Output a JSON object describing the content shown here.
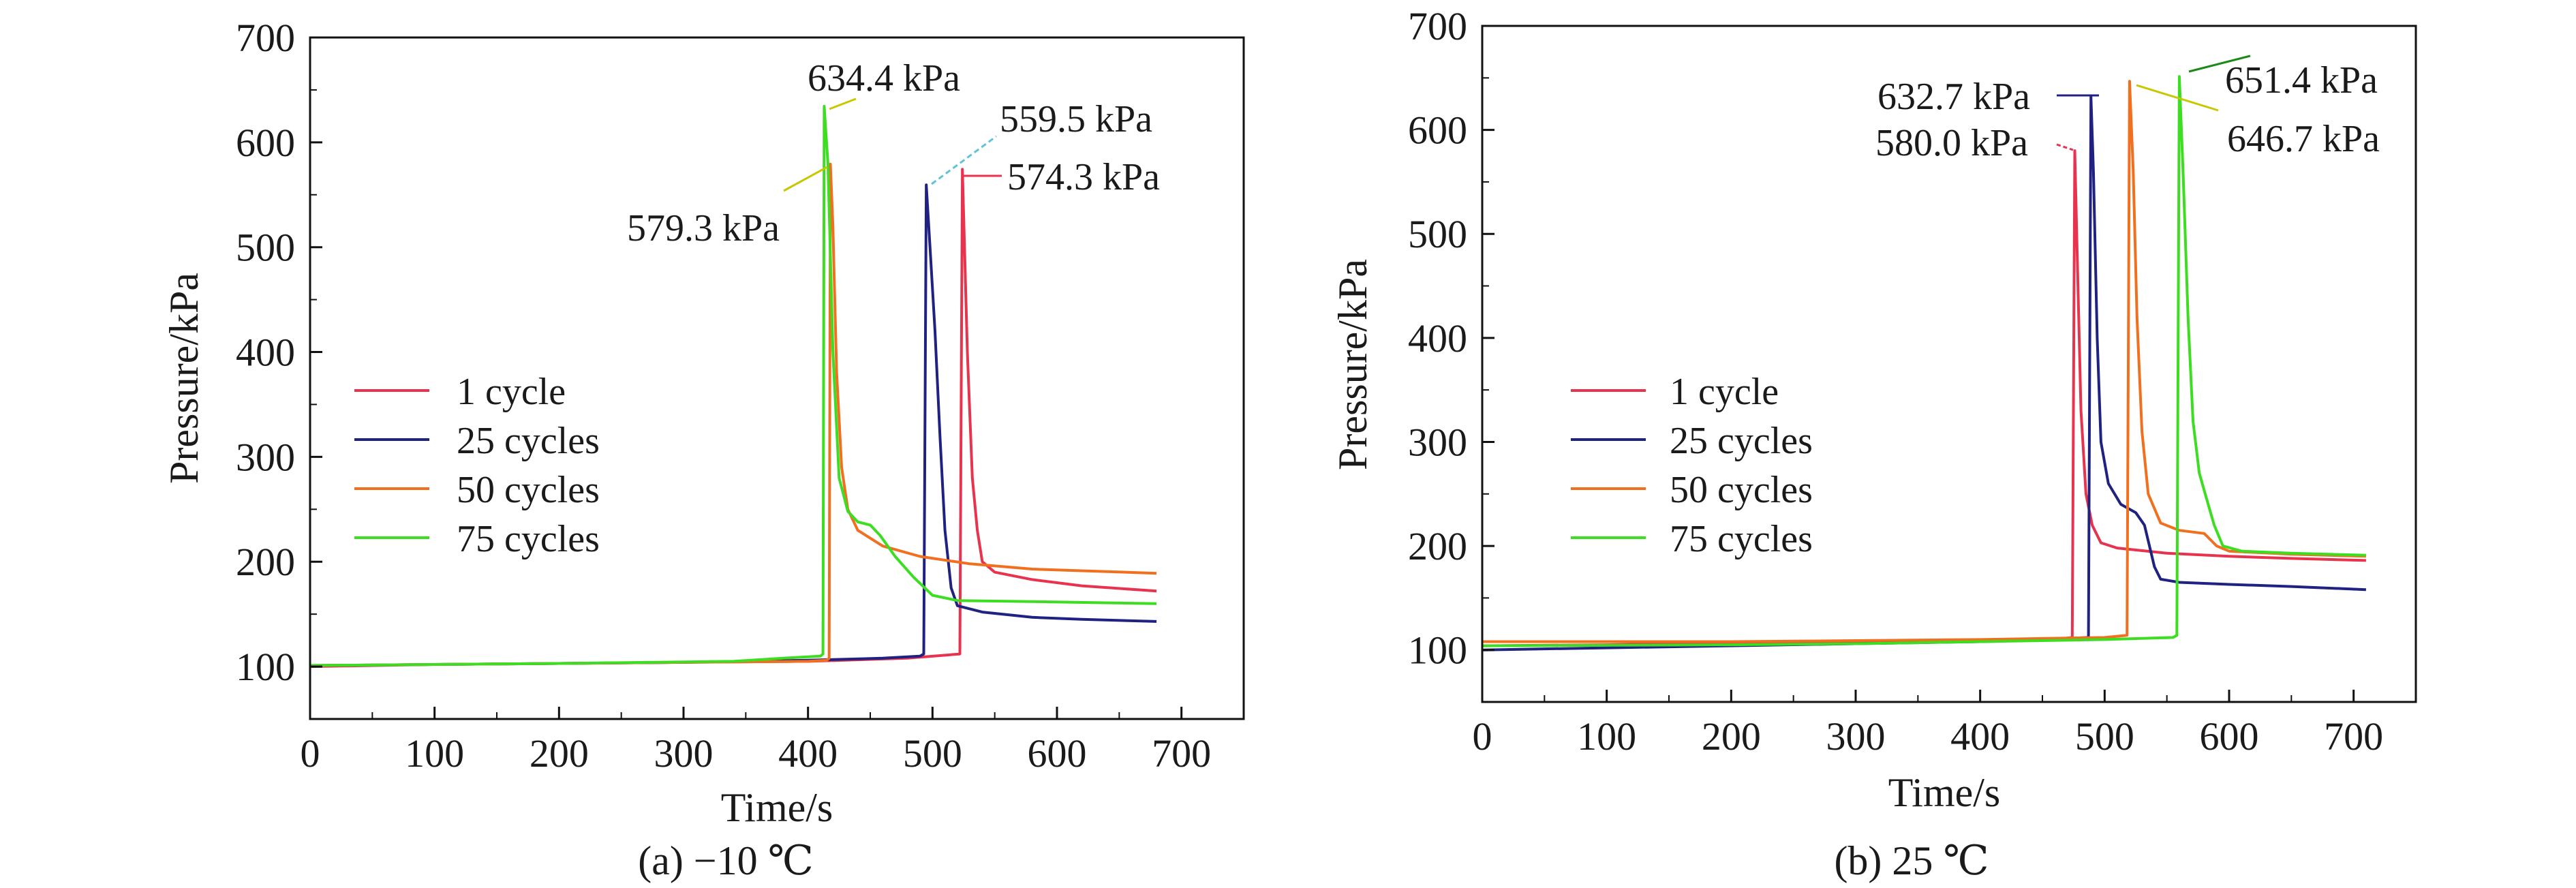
{
  "chart_data": [
    {
      "type": "line",
      "caption": "(a) −10 ℃",
      "xlabel": "Time/s",
      "ylabel": "Pressure/kPa",
      "xlim": [
        0,
        750
      ],
      "ylim": [
        50,
        700
      ],
      "xticks": [
        "0",
        "100",
        "200",
        "300",
        "400",
        "500",
        "600",
        "700"
      ],
      "yticks": [
        "100",
        "200",
        "300",
        "400",
        "500",
        "600",
        "700"
      ],
      "legend": [
        "1 cycle",
        "25 cycles",
        "50 cycles",
        "75 cycles"
      ],
      "legend_position": "left",
      "grid": false,
      "series": [
        {
          "name": "1 cycle",
          "color": "#e8334f",
          "points": [
            [
              0,
              100
            ],
            [
              100,
              102
            ],
            [
              200,
              103
            ],
            [
              300,
              104
            ],
            [
              400,
              105
            ],
            [
              480,
              108
            ],
            [
              522,
              112
            ],
            [
              524,
              574.3
            ],
            [
              528,
              400
            ],
            [
              532,
              280
            ],
            [
              536,
              230
            ],
            [
              540,
              200
            ],
            [
              550,
              190
            ],
            [
              580,
              183
            ],
            [
              620,
              177
            ],
            [
              680,
              172
            ]
          ]
        },
        {
          "name": "25 cycles",
          "color": "#1f2280",
          "points": [
            [
              0,
              101
            ],
            [
              100,
              102
            ],
            [
              200,
              103
            ],
            [
              300,
              104
            ],
            [
              400,
              106
            ],
            [
              460,
              108
            ],
            [
              490,
              110
            ],
            [
              493,
              112
            ],
            [
              495,
              559.5
            ],
            [
              498,
              500
            ],
            [
              502,
              420
            ],
            [
              506,
              320
            ],
            [
              510,
              230
            ],
            [
              515,
              175
            ],
            [
              520,
              158
            ],
            [
              540,
              152
            ],
            [
              580,
              147
            ],
            [
              620,
              145
            ],
            [
              680,
              143
            ]
          ]
        },
        {
          "name": "50 cycles",
          "color": "#f07020",
          "points": [
            [
              0,
              101
            ],
            [
              200,
              103
            ],
            [
              300,
              104
            ],
            [
              400,
              105
            ],
            [
              415,
              106
            ],
            [
              417,
              108
            ],
            [
              418,
              579.3
            ],
            [
              420,
              520
            ],
            [
              423,
              380
            ],
            [
              427,
              290
            ],
            [
              432,
              250
            ],
            [
              440,
              230
            ],
            [
              460,
              215
            ],
            [
              490,
              205
            ],
            [
              530,
              198
            ],
            [
              580,
              193
            ],
            [
              630,
              191
            ],
            [
              680,
              189
            ]
          ]
        },
        {
          "name": "75 cycles",
          "color": "#3ddd22",
          "points": [
            [
              0,
              101
            ],
            [
              200,
              103
            ],
            [
              340,
              105
            ],
            [
              380,
              108
            ],
            [
              410,
              110
            ],
            [
              412,
              112
            ],
            [
              413,
              634.4
            ],
            [
              416,
              580
            ],
            [
              420,
              400
            ],
            [
              425,
              280
            ],
            [
              432,
              248
            ],
            [
              440,
              238
            ],
            [
              450,
              235
            ],
            [
              458,
              225
            ],
            [
              470,
              205
            ],
            [
              485,
              185
            ],
            [
              500,
              168
            ],
            [
              520,
              163
            ],
            [
              580,
              162
            ],
            [
              630,
              161
            ],
            [
              680,
              160
            ]
          ]
        }
      ],
      "annotations": [
        "634.4 kPa",
        "579.3 kPa",
        "559.5 kPa",
        "574.3 kPa"
      ]
    },
    {
      "type": "line",
      "caption": "(b) 25 ℃",
      "xlabel": "Time/s",
      "ylabel": "Pressure/kPa",
      "xlim": [
        0,
        750
      ],
      "ylim": [
        50,
        700
      ],
      "xticks": [
        "0",
        "100",
        "200",
        "300",
        "400",
        "500",
        "600",
        "700"
      ],
      "yticks": [
        "100",
        "200",
        "300",
        "400",
        "500",
        "600",
        "700"
      ],
      "legend": [
        "1 cycle",
        "25 cycles",
        "50 cycles",
        "75 cycles"
      ],
      "legend_position": "left",
      "grid": false,
      "series": [
        {
          "name": "1 cycle",
          "color": "#e8334f",
          "points": [
            [
              0,
              104
            ],
            [
              100,
              105
            ],
            [
              150,
              106
            ],
            [
              300,
              107
            ],
            [
              400,
              108
            ],
            [
              460,
              110
            ],
            [
              474,
              112
            ],
            [
              476,
              580.0
            ],
            [
              478,
              480
            ],
            [
              481,
              330
            ],
            [
              485,
              250
            ],
            [
              490,
              220
            ],
            [
              497,
              203
            ],
            [
              510,
              198
            ],
            [
              550,
              193
            ],
            [
              600,
              190
            ],
            [
              650,
              188
            ],
            [
              710,
              186
            ]
          ]
        },
        {
          "name": "25 cycles",
          "color": "#1f2280",
          "points": [
            [
              0,
              100
            ],
            [
              100,
              102
            ],
            [
              200,
              104
            ],
            [
              300,
              106
            ],
            [
              400,
              108
            ],
            [
              450,
              110
            ],
            [
              487,
              112
            ],
            [
              489,
              632.7
            ],
            [
              491,
              560
            ],
            [
              494,
              400
            ],
            [
              497,
              300
            ],
            [
              503,
              260
            ],
            [
              513,
              240
            ],
            [
              525,
              232
            ],
            [
              532,
              220
            ],
            [
              540,
              180
            ],
            [
              545,
              168
            ],
            [
              560,
              165
            ],
            [
              600,
              163
            ],
            [
              650,
              161
            ],
            [
              710,
              158
            ]
          ]
        },
        {
          "name": "50 cycles",
          "color": "#f07020",
          "points": [
            [
              0,
              108
            ],
            [
              200,
              108
            ],
            [
              300,
              109
            ],
            [
              400,
              110
            ],
            [
              450,
              111
            ],
            [
              500,
              112
            ],
            [
              518,
              114
            ],
            [
              520,
              646.7
            ],
            [
              523,
              560
            ],
            [
              526,
              420
            ],
            [
              530,
              310
            ],
            [
              535,
              250
            ],
            [
              545,
              222
            ],
            [
              560,
              215
            ],
            [
              580,
              212
            ],
            [
              590,
              200
            ],
            [
              600,
              195
            ],
            [
              650,
              192
            ],
            [
              710,
              190
            ]
          ]
        },
        {
          "name": "75 cycles",
          "color": "#3ddd22",
          "points": [
            [
              0,
              104
            ],
            [
              200,
              105
            ],
            [
              300,
              106
            ],
            [
              400,
              108
            ],
            [
              500,
              110
            ],
            [
              555,
              112
            ],
            [
              558,
              114
            ],
            [
              560,
              651.4
            ],
            [
              563,
              560
            ],
            [
              567,
              420
            ],
            [
              571,
              320
            ],
            [
              576,
              270
            ],
            [
              582,
              245
            ],
            [
              588,
              220
            ],
            [
              595,
              200
            ],
            [
              610,
              195
            ],
            [
              650,
              193
            ],
            [
              710,
              191
            ]
          ]
        }
      ],
      "annotations": [
        "632.7 kPa",
        "580.0 kPa",
        "651.4 kPa",
        "646.7 kPa"
      ]
    }
  ]
}
